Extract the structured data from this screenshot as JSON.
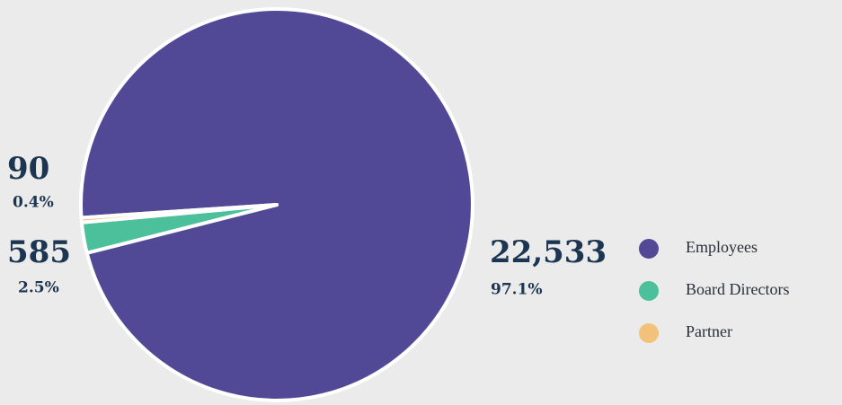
{
  "chart_data": {
    "type": "pie",
    "categories": [
      "Employees",
      "Board Directors",
      "Partner"
    ],
    "values": [
      22533,
      585,
      90
    ],
    "value_labels": [
      "22,533",
      "585",
      "90"
    ],
    "percent_labels": [
      "97.1%",
      "2.5%",
      "0.4%"
    ],
    "colors": [
      "#524996",
      "#4cc09b",
      "#f2c17a"
    ],
    "legend": "right"
  }
}
